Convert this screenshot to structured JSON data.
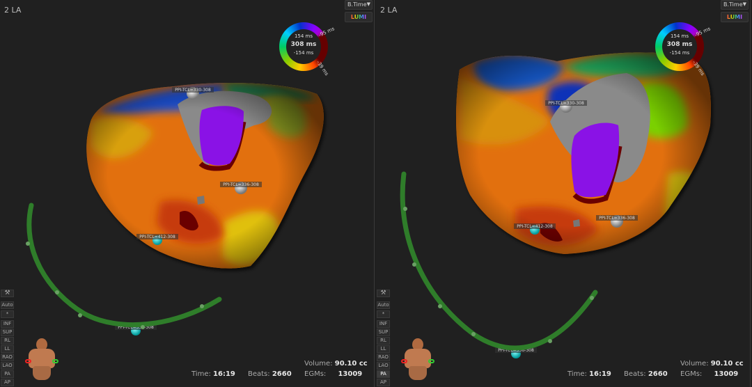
{
  "panels": [
    {
      "title": "2 LA",
      "time": "16:19",
      "beats": "2660",
      "volume": "90.10 cc",
      "egms": "13009",
      "points": [
        "PPI-TCL=330-308",
        "PPI-TCL=336-308",
        "PPI-TCL=412-308",
        "PPI-TCL=356-308"
      ]
    },
    {
      "title": "2 LA",
      "time": "16:19",
      "beats": "2660",
      "volume": "90.10 cc",
      "egms": "13009",
      "points": [
        "PPI-TCL=330-308",
        "PPI-TCL=336-308",
        "PPI-TCL=412-308",
        "PPI-TCL=356-308"
      ]
    }
  ],
  "map_mode": "B.Time",
  "lumi_label": "LUMI",
  "color_wheel": {
    "upper": "154 ms",
    "center": "308 ms",
    "lower": "-154 ms",
    "window_start": "-95 ms",
    "window_end": "-39 ms"
  },
  "labels": {
    "time": "Time:",
    "beats": "Beats:",
    "volume": "Volume:",
    "egms": "EGMs:"
  },
  "view_buttons": [
    "Auto",
    "*",
    "INF",
    "SUP",
    "RL",
    "LL",
    "RAO",
    "LAO",
    "PA",
    "AP"
  ],
  "selected_view": "PA",
  "colors": {
    "background": "#202020",
    "catheter": "#2f7d2a",
    "late": "#e06a10",
    "early": "#8a10e0"
  }
}
